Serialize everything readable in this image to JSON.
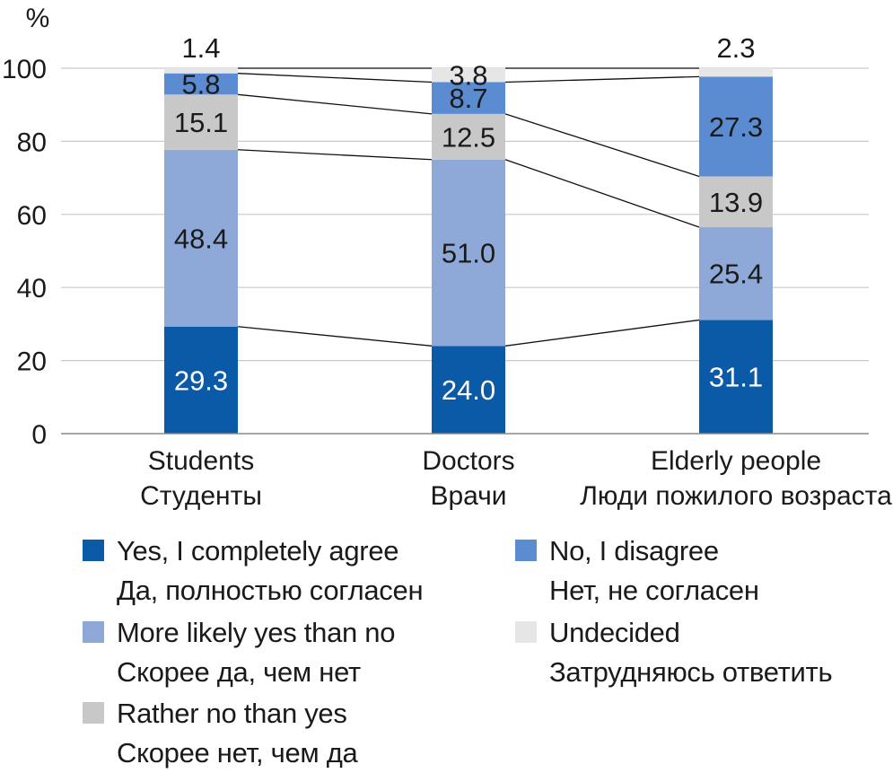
{
  "chart_data": {
    "type": "bar",
    "stacked": true,
    "ylabel": "%",
    "ylim": [
      0,
      100
    ],
    "yticks": [
      0,
      20,
      40,
      60,
      80,
      100
    ],
    "grid": true,
    "categories": [
      {
        "en": "Students",
        "ru": "Студенты"
      },
      {
        "en": "Doctors",
        "ru": "Врачи"
      },
      {
        "en": "Elderly people",
        "ru": "Люди пожилого возраста"
      }
    ],
    "series": [
      {
        "name_en": "Yes, I completely agree",
        "name_ru": "Да, полностью согласен",
        "color": "#0b5aa8",
        "label_color": "#ffffff",
        "values": [
          29.3,
          24.0,
          31.1
        ],
        "labels": [
          "29.3",
          "24.0",
          "31.1"
        ]
      },
      {
        "name_en": "More likely yes than no",
        "name_ru": "Скорее да, чем нет",
        "color": "#8ea9d8",
        "label_color": "#1a1a1a",
        "values": [
          48.4,
          51.0,
          25.4
        ],
        "labels": [
          "48.4",
          "51.0",
          "25.4"
        ]
      },
      {
        "name_en": "Rather no than yes",
        "name_ru": "Скорее нет, чем да",
        "color": "#c8c8c8",
        "label_color": "#1a1a1a",
        "values": [
          15.1,
          12.5,
          13.9
        ],
        "labels": [
          "15.1",
          "12.5",
          "13.9"
        ]
      },
      {
        "name_en": "No, I disagree",
        "name_ru": "Нет, не согласен",
        "color": "#5b8bd0",
        "label_color": "#1a1a1a",
        "values": [
          5.8,
          8.7,
          27.3
        ],
        "labels": [
          "5.8",
          "8.7",
          "27.3"
        ]
      },
      {
        "name_en": "Undecided",
        "name_ru": "Затрудняюсь ответить",
        "color": "#e6e6e6",
        "label_color": "#1a1a1a",
        "values": [
          1.4,
          3.8,
          2.3
        ],
        "labels": [
          "1.4",
          "3.8",
          "2.3"
        ]
      }
    ],
    "legend": [
      {
        "series": 0,
        "en": "Yes, I completely agree",
        "ru": "Да, полностью согласен",
        "color": "#0b5aa8"
      },
      {
        "series": 1,
        "en": "More likely yes than no",
        "ru": "Скорее да, чем нет",
        "color": "#8ea9d8"
      },
      {
        "series": 2,
        "en": "Rather no than yes",
        "ru": "Скорее нет, чем да",
        "color": "#c8c8c8"
      },
      {
        "series": 3,
        "en": "No, I disagree",
        "ru": "Нет, не согласен",
        "color": "#5b8bd0"
      },
      {
        "series": 4,
        "en": "Undecided",
        "ru": "Затрудняюсь ответить",
        "color": "#e6e6e6"
      }
    ]
  }
}
